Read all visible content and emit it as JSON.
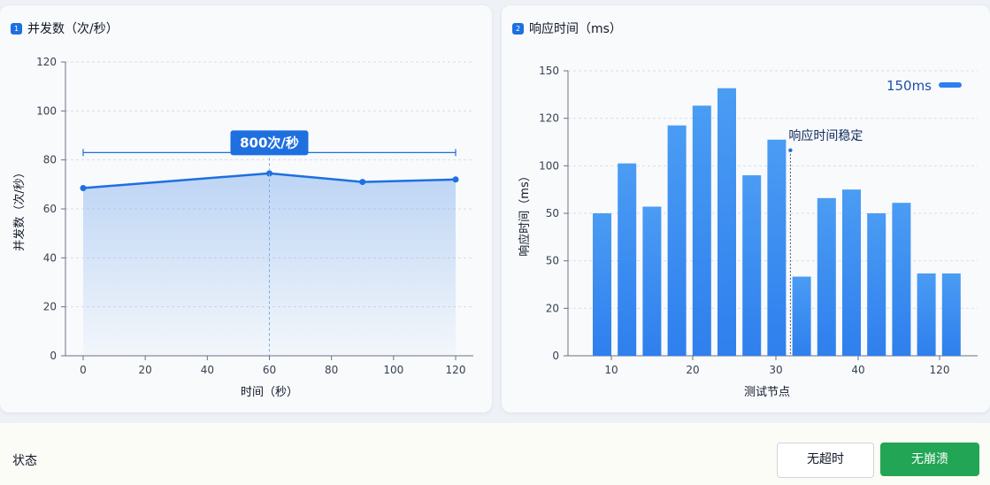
{
  "left_panel": {
    "title": "并发数（次/秒）",
    "badge": "1"
  },
  "right_panel": {
    "title": "响应时间（ms）",
    "badge": "2"
  },
  "status": {
    "label": "状态"
  },
  "buttons": {
    "no_timeout": "无超时",
    "no_crash": "无崩溃"
  },
  "colors": {
    "primary": "#1e6fe0",
    "bar": "#3d8ff0",
    "success": "#22a555"
  },
  "chart_data": [
    {
      "type": "area",
      "xlabel": "时间（秒）",
      "ylabel": "并发数（次/秒）",
      "xlim": [
        0,
        120
      ],
      "ylim": [
        0,
        120
      ],
      "xticks": [
        "0",
        "20",
        "40",
        "60",
        "80",
        "100",
        "120"
      ],
      "yticks": [
        "0",
        "20",
        "40",
        "60",
        "80",
        "100",
        "120"
      ],
      "grid": true,
      "series": [
        {
          "x": [
            0,
            60,
            90,
            120
          ],
          "y": [
            68.5,
            74.5,
            71,
            72
          ]
        }
      ],
      "annotation": {
        "text": "800次/秒",
        "y": 83,
        "x_from": 0,
        "x_to": 120,
        "marker_x": 60
      }
    },
    {
      "type": "bar",
      "xlabel": "测试节点",
      "ylabel": "响应时间（ms）",
      "yticks": [
        "0",
        "20",
        "50",
        "50",
        "100",
        "120",
        "150"
      ],
      "xticks": [
        "10",
        "20",
        "30",
        "40",
        "120"
      ],
      "grid": true,
      "values": [
        50,
        101,
        57,
        117,
        128,
        139,
        90,
        111,
        30,
        66,
        75,
        50,
        61,
        31,
        31
      ],
      "value_scale": {
        "tick_ranks": [
          0,
          1,
          2,
          3,
          4,
          5,
          6
        ]
      },
      "legend": {
        "label": "150ms",
        "position": "top-right"
      },
      "annotation": {
        "text": "响应时间稳定",
        "bar_index": 7
      }
    }
  ]
}
